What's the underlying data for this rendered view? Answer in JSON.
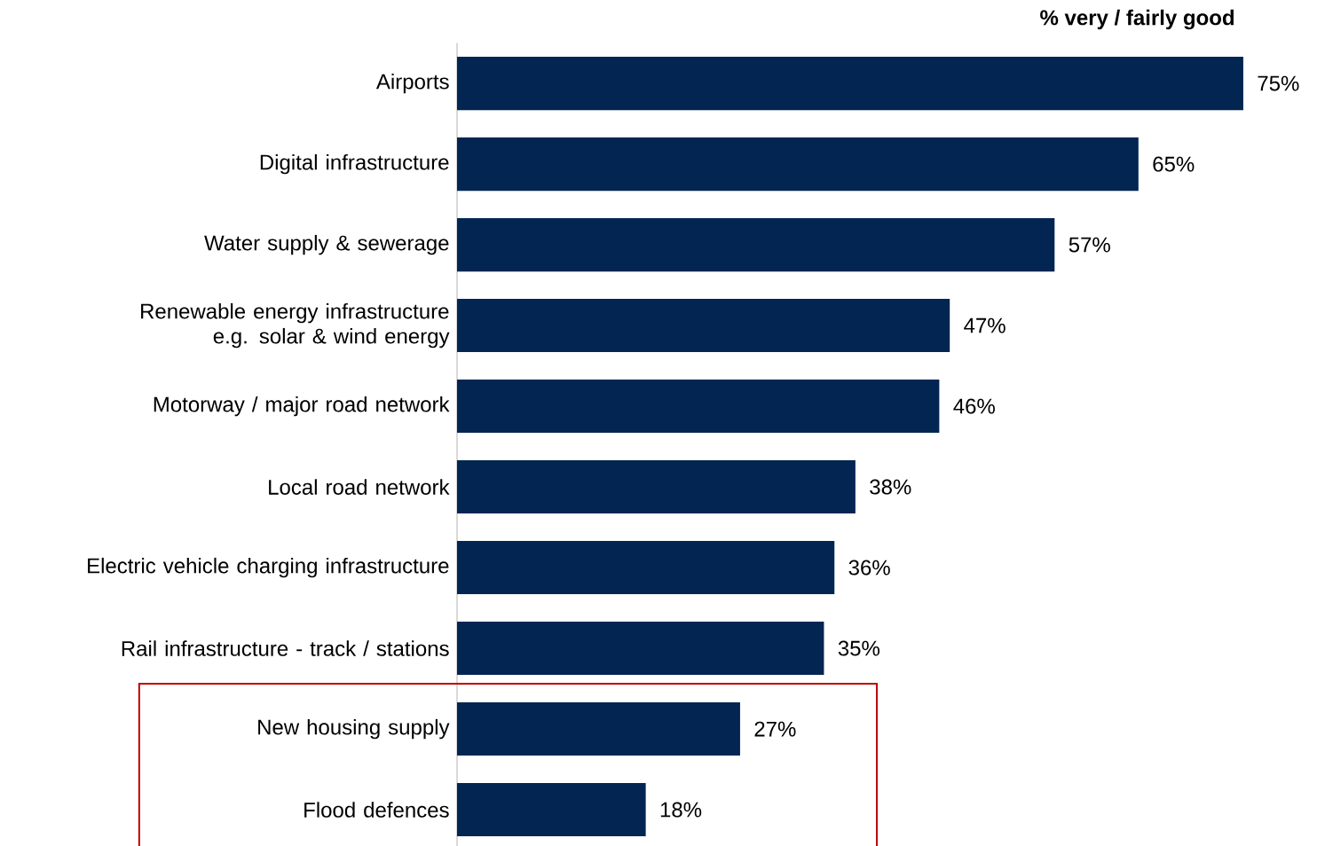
{
  "chart_data": {
    "type": "bar",
    "orientation": "horizontal",
    "title": "% very / fairly good",
    "categories": [
      "Airports",
      "Digital infrastructure",
      "Water supply & sewerage",
      "Renewable energy infrastructure e.g. solar & wind energy",
      "Motorway / major road network",
      "Local road network",
      "Electric vehicle charging infrastructure",
      "Rail infrastructure - track / stations",
      "New housing supply",
      "Flood defences"
    ],
    "values": [
      75,
      65,
      57,
      47,
      46,
      38,
      36,
      35,
      27,
      18
    ],
    "value_labels": [
      "75%",
      "65%",
      "57%",
      "47%",
      "46%",
      "38%",
      "36%",
      "35%",
      "27%",
      "18%"
    ],
    "color": "#022552"
  }
}
